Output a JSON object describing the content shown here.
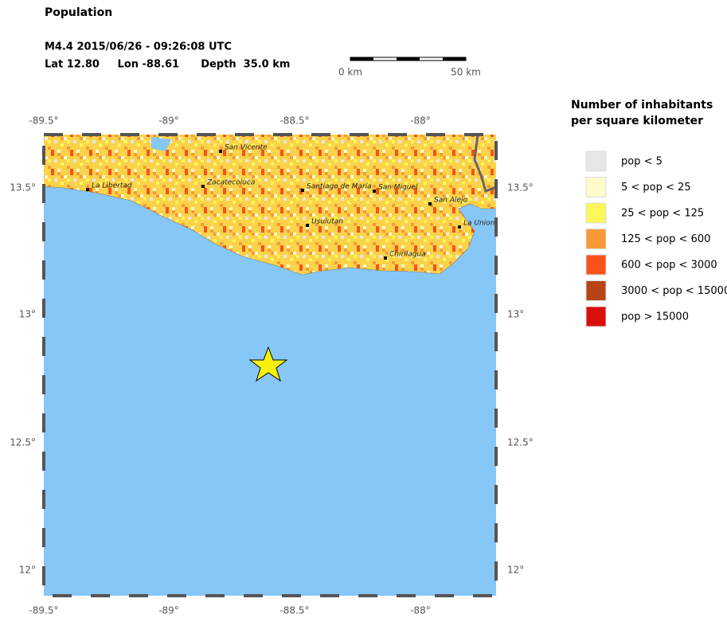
{
  "header": {
    "title": "Population",
    "event": "M4.4  2015/06/26 - 09:26:08 UTC",
    "location": "Lat 12.80     Lon -88.61      Depth  35.0 km"
  },
  "scale_bar": {
    "start": "0 km",
    "end": "50 km"
  },
  "lon_labels": [
    "-89.5°",
    "-89°",
    "-88.5°",
    "-88°"
  ],
  "lat_labels": [
    "13.5°",
    "13°",
    "12.5°",
    "12°"
  ],
  "cities": [
    "La Libertad",
    "Zacatecoluca",
    "San Vicente",
    "Santiago de María",
    "San Miguel",
    "San Alejo",
    "La Union",
    "Usulutan",
    "Chirilagua"
  ],
  "legend": {
    "title": [
      "Number of inhabitants",
      "per square kilometer"
    ],
    "items": [
      {
        "label": "pop < 5",
        "color": "#e6e6e6"
      },
      {
        "label": "5 < pop < 25",
        "color": "#fdfacb"
      },
      {
        "label": "25 < pop < 125",
        "color": "#fbf65a"
      },
      {
        "label": "125 < pop < 600",
        "color": "#f99a36"
      },
      {
        "label": "600 < pop < 3000",
        "color": "#f8521a"
      },
      {
        "label": "3000 < pop < 15000",
        "color": "#b84416"
      },
      {
        "label": "pop > 15000",
        "color": "#d80f0b"
      }
    ]
  }
}
